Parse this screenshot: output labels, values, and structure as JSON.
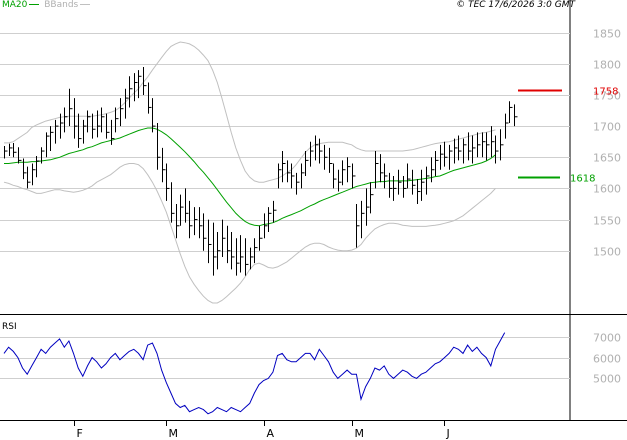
{
  "header": {
    "legend_ma": "MA20",
    "legend_bb": "BBands",
    "copyright": "© TEC 17/6/2026 3:0 GMT"
  },
  "colors": {
    "price_bar": "#000000",
    "ma": "#00a000",
    "bbands": "#c0c0c0",
    "grid": "#cfcfcf",
    "rsi_line": "#0000c0",
    "resistance": "#e00000",
    "support": "#00a000",
    "axis_text": "#b0b0b0"
  },
  "chart_data": [
    {
      "type": "line",
      "subtype": "ohlc-bar",
      "title": "",
      "ylim": [
        1400,
        1880
      ],
      "y_ticks": [
        1500,
        1550,
        1600,
        1650,
        1700,
        1750,
        1800,
        1850
      ],
      "grid": true,
      "x_month_labels": [
        {
          "label": "F",
          "index": 15
        },
        {
          "label": "M",
          "index": 35
        },
        {
          "label": "A",
          "index": 56
        },
        {
          "label": "M",
          "index": 75
        },
        {
          "label": "J",
          "index": 95
        }
      ],
      "levels": [
        {
          "label": "1758",
          "value": 1758,
          "color": "#e00000"
        },
        {
          "label": "1618",
          "value": 1618,
          "color": "#00a000"
        }
      ],
      "bars": [
        [
          1668,
          1648,
          1660
        ],
        [
          1672,
          1652,
          1665
        ],
        [
          1673,
          1650,
          1658
        ],
        [
          1666,
          1640,
          1645
        ],
        [
          1648,
          1615,
          1625
        ],
        [
          1635,
          1600,
          1610
        ],
        [
          1640,
          1605,
          1630
        ],
        [
          1652,
          1618,
          1644
        ],
        [
          1666,
          1640,
          1660
        ],
        [
          1690,
          1650,
          1684
        ],
        [
          1700,
          1660,
          1690
        ],
        [
          1710,
          1672,
          1700
        ],
        [
          1720,
          1680,
          1705
        ],
        [
          1730,
          1690,
          1715
        ],
        [
          1760,
          1700,
          1728
        ],
        [
          1745,
          1680,
          1700
        ],
        [
          1720,
          1665,
          1680
        ],
        [
          1710,
          1672,
          1700
        ],
        [
          1725,
          1690,
          1715
        ],
        [
          1720,
          1680,
          1695
        ],
        [
          1725,
          1682,
          1700
        ],
        [
          1730,
          1690,
          1715
        ],
        [
          1720,
          1680,
          1690
        ],
        [
          1710,
          1670,
          1680
        ],
        [
          1730,
          1690,
          1712
        ],
        [
          1745,
          1700,
          1728
        ],
        [
          1760,
          1712,
          1745
        ],
        [
          1780,
          1730,
          1760
        ],
        [
          1785,
          1740,
          1770
        ],
        [
          1790,
          1745,
          1780
        ],
        [
          1795,
          1750,
          1765
        ],
        [
          1770,
          1720,
          1730
        ],
        [
          1745,
          1690,
          1700
        ],
        [
          1705,
          1630,
          1650
        ],
        [
          1665,
          1610,
          1630
        ],
        [
          1640,
          1580,
          1600
        ],
        [
          1610,
          1545,
          1560
        ],
        [
          1575,
          1520,
          1540
        ],
        [
          1590,
          1540,
          1570
        ],
        [
          1600,
          1545,
          1560
        ],
        [
          1580,
          1520,
          1540
        ],
        [
          1570,
          1525,
          1550
        ],
        [
          1570,
          1520,
          1540
        ],
        [
          1560,
          1500,
          1520
        ],
        [
          1550,
          1480,
          1510
        ],
        [
          1545,
          1460,
          1490
        ],
        [
          1530,
          1470,
          1500
        ],
        [
          1550,
          1490,
          1520
        ],
        [
          1540,
          1480,
          1500
        ],
        [
          1530,
          1470,
          1490
        ],
        [
          1520,
          1460,
          1480
        ],
        [
          1525,
          1465,
          1490
        ],
        [
          1520,
          1460,
          1478
        ],
        [
          1505,
          1470,
          1490
        ],
        [
          1520,
          1480,
          1505
        ],
        [
          1540,
          1500,
          1520
        ],
        [
          1560,
          1520,
          1540
        ],
        [
          1570,
          1530,
          1560
        ],
        [
          1580,
          1545,
          1565
        ],
        [
          1640,
          1600,
          1630
        ],
        [
          1660,
          1610,
          1640
        ],
        [
          1645,
          1610,
          1625
        ],
        [
          1640,
          1600,
          1620
        ],
        [
          1625,
          1590,
          1610
        ],
        [
          1640,
          1600,
          1625
        ],
        [
          1660,
          1620,
          1645
        ],
        [
          1675,
          1635,
          1660
        ],
        [
          1685,
          1645,
          1670
        ],
        [
          1680,
          1640,
          1660
        ],
        [
          1670,
          1630,
          1650
        ],
        [
          1665,
          1625,
          1640
        ],
        [
          1640,
          1600,
          1615
        ],
        [
          1630,
          1595,
          1610
        ],
        [
          1645,
          1605,
          1630
        ],
        [
          1650,
          1610,
          1635
        ],
        [
          1640,
          1600,
          1620
        ],
        [
          1575,
          1505,
          1540
        ],
        [
          1580,
          1520,
          1560
        ],
        [
          1600,
          1540,
          1570
        ],
        [
          1610,
          1560,
          1590
        ],
        [
          1660,
          1600,
          1640
        ],
        [
          1655,
          1610,
          1625
        ],
        [
          1640,
          1600,
          1620
        ],
        [
          1625,
          1585,
          1600
        ],
        [
          1620,
          1580,
          1600
        ],
        [
          1630,
          1590,
          1610
        ],
        [
          1620,
          1585,
          1600
        ],
        [
          1640,
          1600,
          1615
        ],
        [
          1630,
          1590,
          1605
        ],
        [
          1615,
          1575,
          1595
        ],
        [
          1630,
          1580,
          1610
        ],
        [
          1635,
          1590,
          1620
        ],
        [
          1650,
          1610,
          1630
        ],
        [
          1660,
          1620,
          1645
        ],
        [
          1670,
          1630,
          1655
        ],
        [
          1675,
          1635,
          1650
        ],
        [
          1670,
          1630,
          1660
        ],
        [
          1680,
          1640,
          1665
        ],
        [
          1685,
          1645,
          1660
        ],
        [
          1680,
          1640,
          1670
        ],
        [
          1690,
          1645,
          1660
        ],
        [
          1685,
          1640,
          1665
        ],
        [
          1690,
          1650,
          1670
        ],
        [
          1690,
          1650,
          1675
        ],
        [
          1690,
          1645,
          1670
        ],
        [
          1700,
          1650,
          1675
        ],
        [
          1685,
          1640,
          1660
        ],
        [
          1695,
          1645,
          1670
        ],
        [
          1720,
          1680,
          1705
        ],
        [
          1740,
          1705,
          1730
        ],
        [
          1735,
          1700,
          1715
        ]
      ],
      "ma20": [
        1640,
        1640,
        1641,
        1642,
        1642,
        1642,
        1643,
        1643,
        1644,
        1645,
        1646,
        1648,
        1650,
        1653,
        1656,
        1658,
        1660,
        1662,
        1665,
        1667,
        1670,
        1673,
        1675,
        1677,
        1679,
        1681,
        1684,
        1687,
        1690,
        1693,
        1695,
        1697,
        1697,
        1695,
        1691,
        1686,
        1680,
        1673,
        1666,
        1659,
        1651,
        1643,
        1634,
        1626,
        1617,
        1608,
        1598,
        1588,
        1578,
        1569,
        1560,
        1553,
        1547,
        1543,
        1541,
        1540,
        1542,
        1543,
        1545,
        1548,
        1552,
        1555,
        1558,
        1561,
        1564,
        1568,
        1572,
        1575,
        1579,
        1582,
        1585,
        1588,
        1591,
        1594,
        1597,
        1600,
        1603,
        1605,
        1607,
        1609,
        1610,
        1611,
        1611,
        1612,
        1612,
        1612,
        1612,
        1612,
        1613,
        1614,
        1615,
        1616,
        1617,
        1619,
        1620,
        1623,
        1626,
        1629,
        1631,
        1633,
        1635,
        1637,
        1639,
        1641,
        1644,
        1648,
        1654
      ],
      "bb_upper": [
        1673,
        1673,
        1675,
        1680,
        1685,
        1690,
        1698,
        1702,
        1705,
        1708,
        1710,
        1712,
        1714,
        1715,
        1716,
        1716,
        1716,
        1716,
        1716,
        1716,
        1717,
        1718,
        1720,
        1722,
        1725,
        1730,
        1737,
        1745,
        1753,
        1760,
        1770,
        1779,
        1790,
        1800,
        1810,
        1820,
        1828,
        1832,
        1835,
        1834,
        1832,
        1828,
        1822,
        1814,
        1805,
        1790,
        1770,
        1745,
        1718,
        1690,
        1665,
        1645,
        1628,
        1618,
        1612,
        1610,
        1610,
        1612,
        1614,
        1616,
        1620,
        1625,
        1630,
        1638,
        1648,
        1658,
        1665,
        1670,
        1672,
        1673,
        1674,
        1674,
        1674,
        1674,
        1672,
        1670,
        1665,
        1662,
        1660,
        1660,
        1660,
        1660,
        1660,
        1660,
        1660,
        1660,
        1660,
        1661,
        1662,
        1664,
        1666,
        1668,
        1670,
        1672,
        1673,
        1674,
        1675,
        1677,
        1679,
        1681,
        1683,
        1685,
        1687,
        1689,
        1690,
        1692,
        1694
      ],
      "bb_lower": [
        1610,
        1608,
        1605,
        1603,
        1600,
        1598,
        1595,
        1592,
        1592,
        1594,
        1596,
        1598,
        1598,
        1596,
        1595,
        1594,
        1595,
        1597,
        1600,
        1604,
        1610,
        1614,
        1618,
        1622,
        1628,
        1634,
        1638,
        1640,
        1640,
        1638,
        1632,
        1622,
        1610,
        1596,
        1580,
        1562,
        1540,
        1518,
        1495,
        1475,
        1458,
        1446,
        1436,
        1427,
        1420,
        1416,
        1416,
        1420,
        1426,
        1433,
        1440,
        1448,
        1458,
        1470,
        1478,
        1480,
        1477,
        1473,
        1472,
        1474,
        1478,
        1482,
        1488,
        1494,
        1500,
        1506,
        1510,
        1512,
        1512,
        1510,
        1506,
        1503,
        1501,
        1500,
        1500,
        1501,
        1504,
        1510,
        1520,
        1528,
        1535,
        1539,
        1542,
        1544,
        1544,
        1543,
        1541,
        1540,
        1539,
        1539,
        1539,
        1539,
        1540,
        1541,
        1542,
        1544,
        1546,
        1548,
        1552,
        1556,
        1562,
        1568,
        1574,
        1580,
        1586,
        1592,
        1600
      ]
    },
    {
      "type": "line",
      "title": "RSI",
      "ylim": [
        3000,
        8000
      ],
      "y_ticks": [
        5000,
        6000,
        7000
      ],
      "grid": true,
      "values": [
        6200,
        6500,
        6300,
        6000,
        5500,
        5200,
        5600,
        6000,
        6400,
        6200,
        6500,
        6700,
        6900,
        6500,
        6800,
        6200,
        5500,
        5100,
        5600,
        6000,
        5800,
        5500,
        5700,
        6000,
        6200,
        5900,
        6100,
        6300,
        6400,
        6200,
        5900,
        6600,
        6700,
        6200,
        5400,
        4800,
        4300,
        3800,
        3600,
        3700,
        3400,
        3500,
        3600,
        3500,
        3300,
        3400,
        3600,
        3500,
        3400,
        3600,
        3500,
        3400,
        3600,
        3800,
        4300,
        4700,
        4900,
        5000,
        5300,
        6100,
        6200,
        5900,
        5800,
        5800,
        6000,
        6200,
        6200,
        5900,
        6400,
        6100,
        5800,
        5300,
        5000,
        5200,
        5400,
        5200,
        5200,
        4000,
        4600,
        5000,
        5500,
        5400,
        5600,
        5200,
        5000,
        5200,
        5400,
        5300,
        5100,
        5000,
        5200,
        5300,
        5500,
        5700,
        5800,
        6000,
        6200,
        6500,
        6400,
        6200,
        6600,
        6300,
        6500,
        6200,
        6000,
        5600,
        6400,
        6800,
        7200
      ]
    }
  ]
}
